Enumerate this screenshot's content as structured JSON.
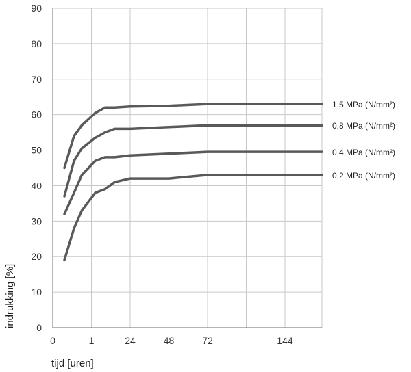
{
  "chart_data": {
    "type": "line",
    "title": "",
    "xlabel": "tijd [uren]",
    "ylabel": "indrukking [%]",
    "ylim": [
      0,
      90
    ],
    "y_ticks": [
      0,
      10,
      20,
      30,
      40,
      50,
      60,
      70,
      80,
      90
    ],
    "x_ticks": [
      {
        "value": 0,
        "label": "0"
      },
      {
        "value": 1,
        "label": "1"
      },
      {
        "value": 2,
        "label": "24"
      },
      {
        "value": 3,
        "label": "48"
      },
      {
        "value": 4,
        "label": "72"
      },
      {
        "value": 6,
        "label": "144"
      }
    ],
    "x_scale_note": "non-linear time axis, labels 0, 1, 24, 48, 72, 144 at tick positions 0-4 and 6",
    "xlim": [
      0,
      7
    ],
    "grid": true,
    "legend": "series labels placed to the right of line ends",
    "line_color": "#595959",
    "series": [
      {
        "name": "1,5 MPa (N/mm²)",
        "x": [
          0.3,
          0.55,
          0.75,
          1.1,
          1.35,
          1.6,
          2.0,
          3.0,
          4.0,
          5.0,
          7.0
        ],
        "values": [
          45,
          54,
          57,
          60.5,
          62,
          62,
          62.3,
          62.5,
          63,
          63,
          63
        ]
      },
      {
        "name": "0,8 MPa (N/mm²)",
        "x": [
          0.3,
          0.55,
          0.75,
          1.1,
          1.35,
          1.6,
          2.0,
          3.0,
          4.0,
          5.0,
          7.0
        ],
        "values": [
          37,
          47,
          50.5,
          53.5,
          55,
          56,
          56,
          56.5,
          57,
          57,
          57
        ]
      },
      {
        "name": "0,4 MPa (N/mm²)",
        "x": [
          0.3,
          0.55,
          0.75,
          1.1,
          1.35,
          1.6,
          2.0,
          3.0,
          4.0,
          5.0,
          7.0
        ],
        "values": [
          32,
          38,
          43,
          47,
          48,
          48,
          48.5,
          49,
          49.5,
          49.5,
          49.5
        ]
      },
      {
        "name": "0,2 MPa (N/mm²)",
        "x": [
          0.3,
          0.55,
          0.75,
          1.1,
          1.35,
          1.6,
          2.0,
          3.0,
          4.0,
          5.0,
          7.0
        ],
        "values": [
          19,
          28,
          33,
          38,
          39,
          41,
          42,
          42,
          43,
          43,
          43
        ]
      }
    ]
  }
}
